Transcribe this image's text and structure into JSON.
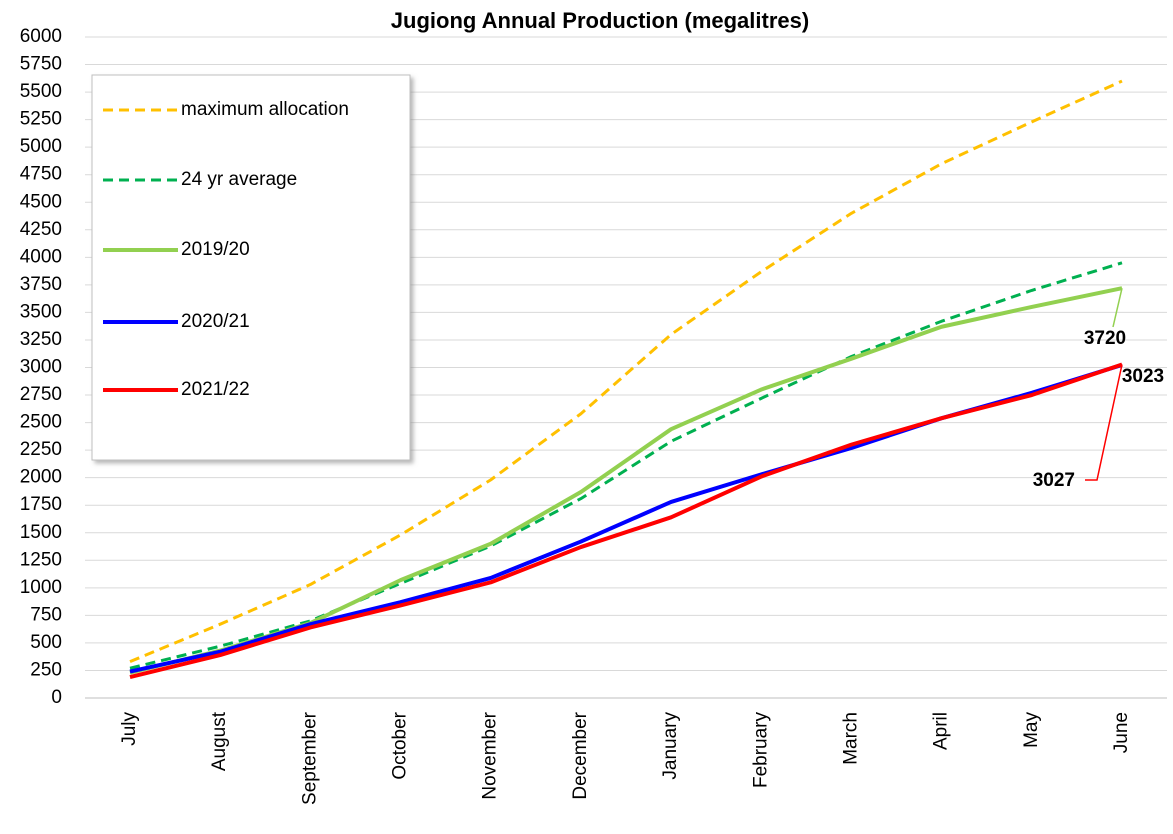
{
  "chart_data": {
    "type": "line",
    "title": "Jugiong Annual Production (megalitres)",
    "categories": [
      "July",
      "August",
      "September",
      "October",
      "November",
      "December",
      "January",
      "February",
      "March",
      "April",
      "May",
      "June"
    ],
    "series": [
      {
        "name": "maximum allocation",
        "color": "#ffc000",
        "dash": true,
        "values": [
          330,
          670,
          1030,
          1480,
          1980,
          2580,
          3300,
          3870,
          4400,
          4850,
          5230,
          5600
        ]
      },
      {
        "name": "24 yr average",
        "color": "#00b050",
        "dash": true,
        "values": [
          270,
          470,
          700,
          1040,
          1380,
          1810,
          2330,
          2720,
          3100,
          3420,
          3700,
          3950
        ]
      },
      {
        "name": "2019/20",
        "color": "#92d050",
        "dash": false,
        "values": [
          230,
          430,
          680,
          1070,
          1400,
          1870,
          2440,
          2800,
          3080,
          3370,
          3550,
          3720
        ]
      },
      {
        "name": "2020/21",
        "color": "#0000ff",
        "dash": false,
        "values": [
          240,
          420,
          670,
          870,
          1090,
          1420,
          1780,
          2030,
          2270,
          2540,
          2770,
          3023
        ]
      },
      {
        "name": "2021/22",
        "color": "#ff0000",
        "dash": false,
        "values": [
          190,
          390,
          640,
          840,
          1050,
          1370,
          1640,
          2010,
          2300,
          2540,
          2750,
          3027
        ]
      }
    ],
    "ylim": [
      0,
      6000
    ],
    "yticks": [
      0,
      250,
      500,
      750,
      1000,
      1250,
      1500,
      1750,
      2000,
      2250,
      2500,
      2750,
      3000,
      3250,
      3500,
      3750,
      4000,
      4250,
      4500,
      4750,
      5000,
      5250,
      5500,
      5750,
      6000
    ],
    "grid": true,
    "legend": "upper left"
  }
}
